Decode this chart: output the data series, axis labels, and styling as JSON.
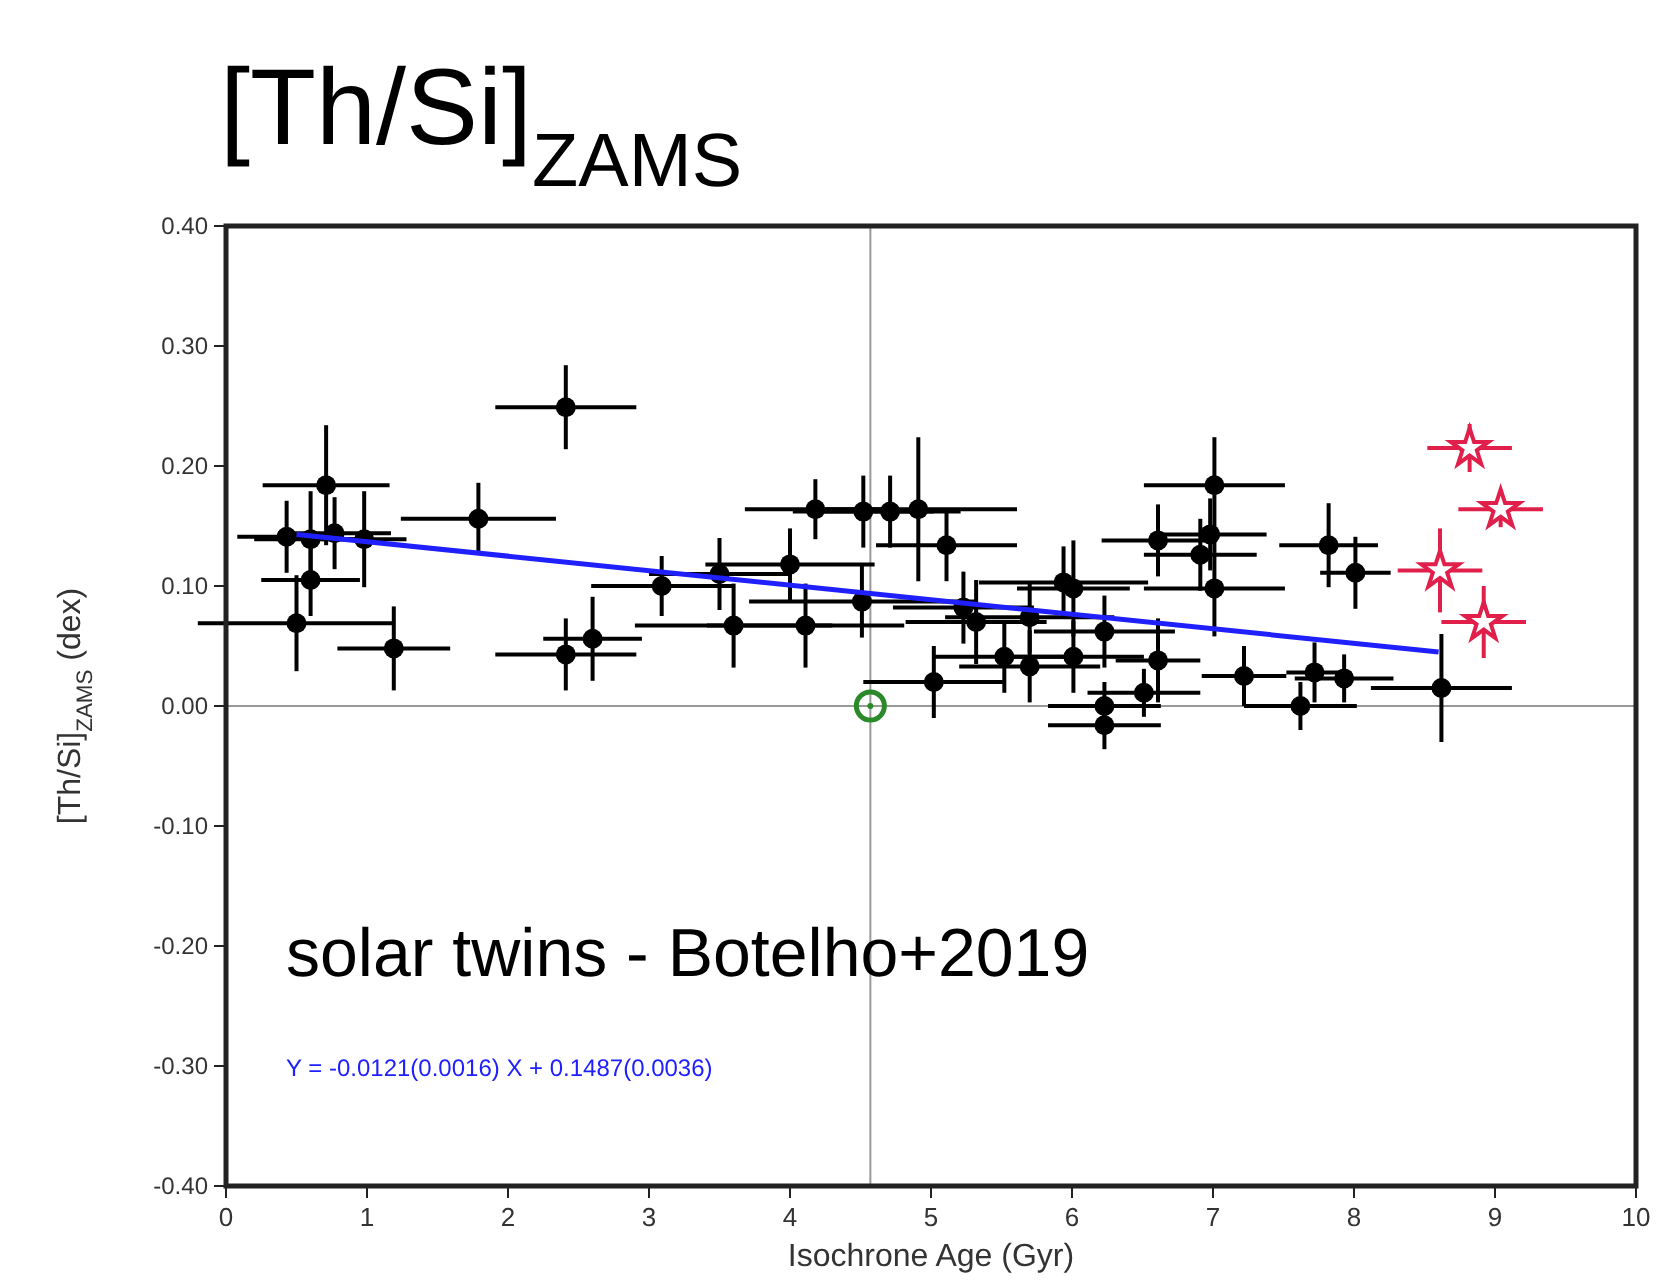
{
  "chart_data": {
    "type": "scatter",
    "title": "[Th/Si]$_{ZAMS}$",
    "xlabel": "Isochrone Age (Gyr)",
    "ylabel": "[Th/Si]$_{ZAMS}$ (dex)",
    "xlim": [
      0,
      10
    ],
    "xticks": [
      0,
      1,
      2,
      3,
      4,
      5,
      6,
      7,
      8,
      9,
      10
    ],
    "ylim": [
      -0.4,
      0.4
    ],
    "yticks": [
      {
        "value": -0.4,
        "label": "-0.40"
      },
      {
        "value": -0.3,
        "label": "-0.30"
      },
      {
        "value": -0.2,
        "label": "-0.20"
      },
      {
        "value": -0.1,
        "label": "-0.10"
      },
      {
        "value": 0,
        "label": "0.00"
      },
      {
        "value": 0.1,
        "label": "0.10"
      },
      {
        "value": 0.2,
        "label": "0.20"
      },
      {
        "value": 0.3,
        "label": "0.30"
      },
      {
        "value": 0.4,
        "label": "0.40"
      }
    ],
    "grid": false,
    "ref_lines": [
      {
        "axis": "x",
        "value": 4.57,
        "color": "#999999"
      },
      {
        "axis": "y",
        "value": 0,
        "color": "#999999"
      }
    ],
    "annotations": [
      "solar twins - Botelho+2019",
      "Y = -0.0121(0.0016) X + 0.1487(0.0036)"
    ],
    "series": [
      {
        "color": "#000000",
        "marker": "circle",
        "x": [
          0.71,
          2.41,
          1.79,
          0.43,
          0.6,
          0.77,
          0.98,
          0.6,
          0.5,
          1.19,
          2.41,
          2.6,
          3.09,
          3.5,
          3.6,
          4.0,
          4.11,
          4.18,
          4.52,
          4.71,
          4.91,
          5.11,
          4.51,
          5.02,
          5.23,
          5.32,
          5.52,
          5.7,
          5.7,
          5.94,
          6.01,
          6.01,
          6.23,
          6.23,
          6.23,
          6.51,
          6.61,
          6.61,
          7.01,
          6.98,
          6.91,
          7.01,
          7.22,
          7.62,
          7.72,
          7.93,
          7.82,
          8.01,
          8.62
        ],
        "values": [
          0.184,
          0.249,
          0.156,
          0.141,
          0.139,
          0.144,
          0.139,
          0.105,
          0.069,
          0.048,
          0.043,
          0.056,
          0.1,
          0.11,
          0.067,
          0.118,
          0.067,
          0.164,
          0.162,
          0.162,
          0.164,
          0.134,
          0.087,
          0.02,
          0.082,
          0.07,
          0.041,
          0.033,
          0.074,
          0.103,
          0.098,
          0.041,
          0.062,
          0.0,
          -0.016,
          0.011,
          0.038,
          0.138,
          0.184,
          0.143,
          0.126,
          0.098,
          0.025,
          0.0,
          0.028,
          0.023,
          0.134,
          0.111,
          0.015
        ],
        "errors": [
          0.05,
          0.035,
          0.03,
          0.03,
          0.04,
          0.03,
          0.04,
          0.03,
          0.04,
          0.035,
          0.03,
          0.035,
          0.025,
          0.03,
          0.035,
          0.03,
          0.035,
          0.025,
          0.03,
          0.03,
          0.06,
          0.03,
          0.03,
          0.03,
          0.03,
          0.035,
          0.03,
          0.03,
          0.03,
          0.03,
          0.04,
          0.03,
          0.03,
          0.02,
          0.02,
          0.02,
          0.035,
          0.03,
          0.04,
          0.03,
          0.03,
          0.04,
          0.025,
          0.02,
          0.025,
          0.02,
          0.035,
          0.03,
          0.045
        ],
        "xerrors": [
          0.45,
          0.5,
          0.55,
          0.35,
          0.4,
          0.4,
          0.3,
          0.35,
          0.7,
          0.4,
          0.5,
          0.35,
          0.5,
          0.5,
          0.7,
          0.6,
          0.7,
          0.5,
          0.5,
          0.5,
          0.7,
          0.5,
          0.8,
          0.5,
          0.5,
          0.5,
          0.5,
          0.5,
          0.6,
          0.6,
          0.4,
          0.5,
          0.5,
          0.4,
          0.4,
          0.4,
          0.3,
          0.4,
          0.5,
          0.4,
          0.4,
          0.5,
          0.3,
          0.4,
          0.2,
          0.35,
          0.35,
          0.25,
          0.5
        ]
      },
      {
        "color": "#e0204a",
        "marker": "star",
        "x": [
          8.82,
          9.04,
          8.61,
          8.92
        ],
        "values": [
          0.215,
          0.164,
          0.113,
          0.07
        ],
        "errors": [
          0.02,
          0.015,
          0.035,
          0.03
        ],
        "xerrors": [
          0.3,
          0.3,
          0.3,
          0.3
        ]
      },
      {
        "color": "#2a8a2a",
        "marker": "circle",
        "x": [
          4.57
        ],
        "values": [
          0
        ]
      },
      {
        "type": "line",
        "color": "#2020ff",
        "x": [
          0.5,
          8.6
        ],
        "values": [
          0.143,
          0.045
        ]
      }
    ]
  }
}
